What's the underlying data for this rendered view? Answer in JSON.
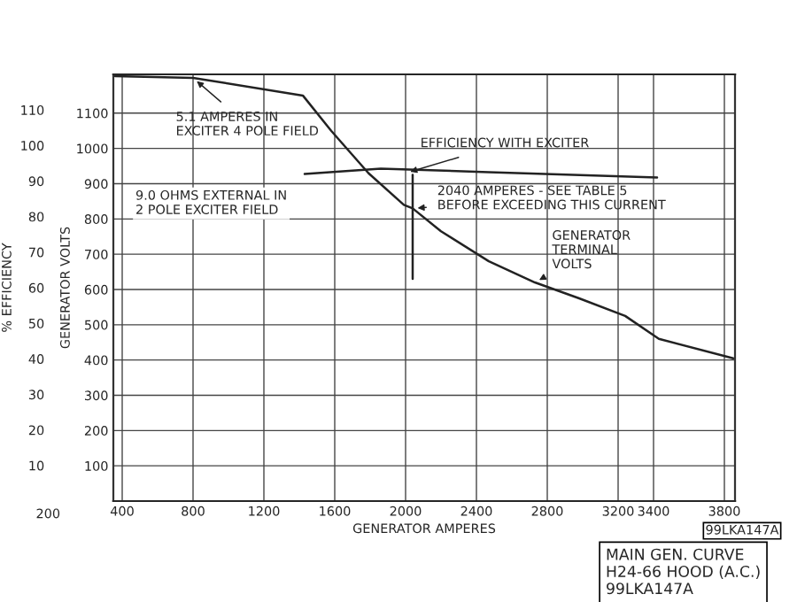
{
  "chart_data": {
    "type": "line",
    "xlabel": "GENERATOR AMPERES",
    "ylabel": "GENERATOR VOLTS",
    "y2label": "% EFFICIENCY",
    "series": [
      {
        "color": "#222222",
        "x": [
          360,
          800,
          1420,
          1580,
          1790,
          1990,
          2040,
          2200,
          2470,
          2730,
          2980,
          3240,
          3430,
          3850
        ],
        "values": [
          1205,
          1200,
          1150,
          1050,
          930,
          840,
          830,
          765,
          680,
          620,
          575,
          525,
          460,
          405
        ]
      },
      {
        "color": "#222222",
        "axis": "y2",
        "x": [
          1430,
          1860,
          2470,
          3420
        ],
        "values": [
          92,
          93.5,
          92.5,
          91
        ]
      },
      {
        "color": "#222222",
        "x": [
          2040,
          2040
        ],
        "values": [
          925,
          630
        ]
      }
    ],
    "xlim": [
      350,
      3860
    ],
    "xticks": [
      400,
      800,
      1200,
      1600,
      2000,
      2400,
      2800,
      3200,
      3400,
      3800
    ],
    "ylim": [
      0,
      1210
    ],
    "yticks": [
      100,
      200,
      300,
      400,
      500,
      600,
      700,
      800,
      900,
      1000,
      1100
    ],
    "y2lim": [
      0,
      120
    ],
    "y2ticks": [
      10,
      20,
      30,
      40,
      50,
      60,
      70,
      80,
      90,
      100,
      110
    ],
    "grid": true,
    "legend": false,
    "marker": "none",
    "line_style": "solid",
    "annotations": [
      {
        "text": "5.1 AMPERES IN\nEXCITER 4 POLE FIELD",
        "x": 800,
        "y": 1200
      },
      {
        "text": "EFFICIENCY WITH EXCITER",
        "x": 2000,
        "y": 930
      },
      {
        "text": "2040 AMPERES - SEE TABLE 5\nBEFORE EXCEEDING THIS CURRENT",
        "x": 2040,
        "y": 830
      },
      {
        "text": "GENERATOR\nTERMINAL\nVOLTS",
        "x": 2730,
        "y": 620
      },
      "9.0 OHMS EXTERNAL IN\n2 POLE EXCITER FIELD",
      "200",
      "99LKA147A",
      "MAIN GEN. CURVE\nH24-66 HOOD (A.C.)\n99LKA147A"
    ]
  }
}
